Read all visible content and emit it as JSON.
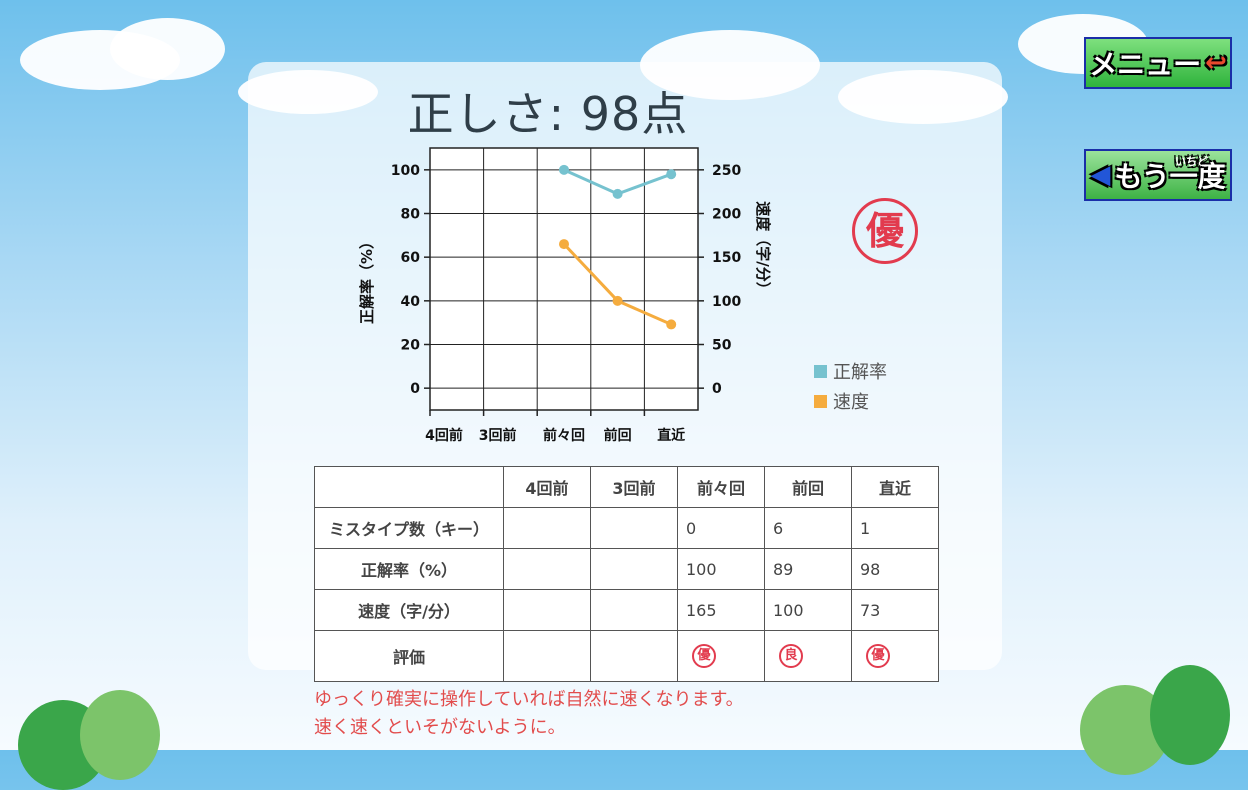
{
  "title": "正しさ: 98点",
  "rating_big": "優",
  "buttons": {
    "menu_label": "メニュー",
    "again_label": "もう一度",
    "again_ruby": "いちど"
  },
  "legend": [
    {
      "label": "正解率",
      "color": "#76c2cf"
    },
    {
      "label": "速度",
      "color": "#f5ac3e"
    }
  ],
  "chart_data": {
    "type": "line",
    "categories": [
      "4回前",
      "3回前",
      "前々回",
      "前回",
      "直近"
    ],
    "series": [
      {
        "name": "正解率",
        "axis": "left",
        "values": [
          null,
          null,
          100,
          89,
          98
        ],
        "color": "#76c2cf"
      },
      {
        "name": "速度",
        "axis": "right",
        "values": [
          null,
          null,
          165,
          100,
          73
        ],
        "color": "#f5ac3e"
      }
    ],
    "ylabel_left": "正解率（%）",
    "ylabel_right": "速度（字/分）",
    "ylim_left": [
      -10,
      110
    ],
    "ylim_right": [
      -25,
      275
    ],
    "yticks_left": [
      0,
      20,
      40,
      60,
      80,
      100
    ],
    "yticks_right": [
      0,
      50,
      100,
      150,
      200,
      250
    ],
    "grid": true,
    "legend_position": "right"
  },
  "table": {
    "headers": [
      "",
      "4回前",
      "3回前",
      "前々回",
      "前回",
      "直近"
    ],
    "rows": [
      {
        "label": "ミスタイプ数（キー）",
        "values": [
          "",
          "",
          "0",
          "6",
          "1"
        ]
      },
      {
        "label": "正解率（%）",
        "values": [
          "",
          "",
          "100",
          "89",
          "98"
        ]
      },
      {
        "label": "速度（字/分）",
        "values": [
          "",
          "",
          "165",
          "100",
          "73"
        ]
      }
    ],
    "rating_row": {
      "label": "評価",
      "values": [
        "",
        "",
        "優",
        "良",
        "優"
      ]
    }
  },
  "message": {
    "line1": "ゆっくり確実に操作していれば自然に速くなります。",
    "line2": "速く速くといそがないように。"
  }
}
